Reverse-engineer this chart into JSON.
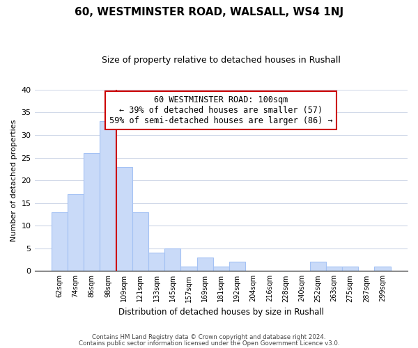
{
  "title": "60, WESTMINSTER ROAD, WALSALL, WS4 1NJ",
  "subtitle": "Size of property relative to detached houses in Rushall",
  "xlabel": "Distribution of detached houses by size in Rushall",
  "ylabel": "Number of detached properties",
  "bar_labels": [
    "62sqm",
    "74sqm",
    "86sqm",
    "98sqm",
    "109sqm",
    "121sqm",
    "133sqm",
    "145sqm",
    "157sqm",
    "169sqm",
    "181sqm",
    "192sqm",
    "204sqm",
    "216sqm",
    "228sqm",
    "240sqm",
    "252sqm",
    "263sqm",
    "275sqm",
    "287sqm",
    "299sqm"
  ],
  "bar_values": [
    13,
    17,
    26,
    33,
    23,
    13,
    4,
    5,
    1,
    3,
    1,
    2,
    0,
    0,
    0,
    0,
    2,
    1,
    1,
    0,
    1
  ],
  "bar_color": "#c9daf8",
  "bar_edge_color": "#a4c2f4",
  "vline_x_index": 3.5,
  "vline_color": "#cc0000",
  "annotation_line1": "60 WESTMINSTER ROAD: 100sqm",
  "annotation_line2": "← 39% of detached houses are smaller (57)",
  "annotation_line3": "59% of semi-detached houses are larger (86) →",
  "annotation_box_edge_color": "#cc0000",
  "annotation_box_face_color": "#ffffff",
  "ylim": [
    0,
    40
  ],
  "yticks": [
    0,
    5,
    10,
    15,
    20,
    25,
    30,
    35,
    40
  ],
  "footer_line1": "Contains HM Land Registry data © Crown copyright and database right 2024.",
  "footer_line2": "Contains public sector information licensed under the Open Government Licence v3.0.",
  "background_color": "#ffffff",
  "grid_color": "#d0d8e8",
  "title_fontsize": 11,
  "subtitle_fontsize": 9,
  "annotation_fontsize": 8.5,
  "ylabel_fontsize": 8,
  "xlabel_fontsize": 8.5
}
